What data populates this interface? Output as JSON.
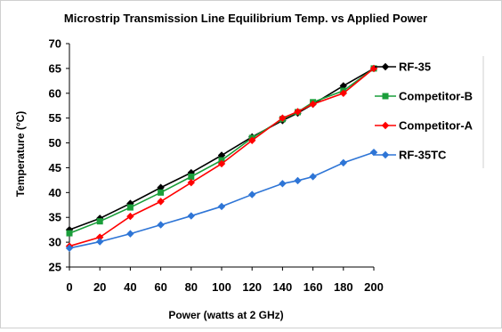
{
  "chart_data": {
    "type": "line",
    "title": "Microstrip Transmission Line Equilibrium Temp. vs Applied Power",
    "xlabel": "Power (watts at 2 GHz)",
    "ylabel": "Temperature (°C)",
    "xlim": [
      0,
      200
    ],
    "ylim": [
      25,
      70
    ],
    "x_ticks": [
      0,
      20,
      40,
      60,
      80,
      100,
      120,
      140,
      160,
      180,
      200
    ],
    "y_ticks": [
      25,
      30,
      35,
      40,
      45,
      50,
      55,
      60,
      65,
      70
    ],
    "grid": false,
    "legend_position": "right",
    "series": [
      {
        "name": "RF-35",
        "color": "#000000",
        "marker": "diamond",
        "x": [
          0,
          20,
          40,
          60,
          80,
          100,
          120,
          140,
          150,
          160,
          180,
          200
        ],
        "values": [
          32.5,
          34.8,
          37.8,
          41.0,
          44.0,
          47.5,
          51.2,
          54.5,
          56.0,
          57.8,
          61.5,
          65.0
        ]
      },
      {
        "name": "Competitor-B",
        "color": "#1a9e3a",
        "marker": "square",
        "x": [
          0,
          20,
          40,
          60,
          80,
          100,
          120,
          140,
          150,
          160,
          180,
          200
        ],
        "values": [
          31.8,
          34.2,
          37.0,
          40.0,
          43.2,
          46.5,
          51.0,
          54.8,
          56.2,
          58.2,
          60.5,
          65.0
        ]
      },
      {
        "name": "Competitor-A",
        "color": "#ff0000",
        "marker": "diamond",
        "x": [
          0,
          20,
          40,
          60,
          80,
          100,
          120,
          140,
          150,
          160,
          180,
          200
        ],
        "values": [
          29.2,
          31.0,
          35.2,
          38.2,
          42.0,
          45.8,
          50.5,
          55.0,
          56.3,
          57.8,
          60.0,
          65.0
        ]
      },
      {
        "name": "RF-35TC",
        "color": "#2e75d6",
        "marker": "diamond",
        "x": [
          0,
          20,
          40,
          60,
          80,
          100,
          120,
          140,
          150,
          160,
          180,
          200
        ],
        "values": [
          28.8,
          30.1,
          31.7,
          33.5,
          35.3,
          37.2,
          39.6,
          41.8,
          42.4,
          43.2,
          46.0,
          48.1
        ]
      }
    ]
  }
}
